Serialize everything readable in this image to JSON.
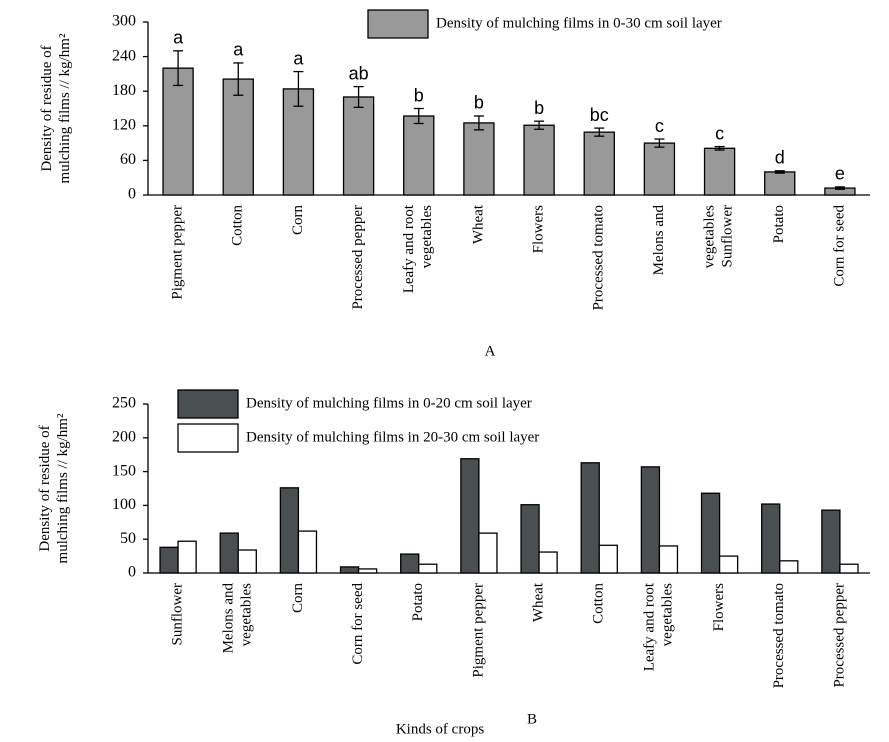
{
  "chart_data": [
    {
      "type": "bar",
      "title": "A",
      "ylabel": "Density of residue of\nmulching films // kg/hm²",
      "categories": [
        "Pigment pepper",
        "Cotton",
        "Corn",
        "Processed pepper",
        "Leafy and root\nvegetables",
        "Wheat",
        "Flowers",
        "Processed tomato",
        "Melons and",
        "vegetables\nSunflower",
        "Potato",
        "Corn for seed"
      ],
      "series": [
        {
          "name": "Density of mulching films in 0-30 cm soil layer",
          "color": "#999999",
          "values": [
            220,
            201,
            184,
            170,
            137,
            125,
            121,
            109,
            90,
            81,
            40,
            12
          ],
          "errors": [
            30,
            28,
            30,
            18,
            13,
            12,
            7,
            7,
            7,
            3,
            2,
            2
          ],
          "annotations": [
            "a",
            "a",
            "a",
            "ab",
            "b",
            "b",
            "b",
            "bc",
            "c",
            "c",
            "d",
            "e"
          ]
        }
      ],
      "ylim": [
        0,
        300
      ],
      "yticks": [
        0,
        60,
        120,
        180,
        240,
        300
      ],
      "grid": false,
      "legend": "top-right"
    },
    {
      "type": "bar",
      "title": "B",
      "xlabel": "Kinds of crops",
      "ylabel": "Density of residue of\nmulching films // kg/hm²",
      "categories": [
        "Sunflower",
        "Melons and\nvegetables",
        "Corn",
        "Corn for seed",
        "Potato",
        "Pigment pepper",
        "Wheat",
        "Cotton",
        "Leafy and root\nvegetables",
        "Flowers",
        "Processed tomato",
        "Processed pepper"
      ],
      "series": [
        {
          "name": "Density of mulching films in 0-20 cm soil layer",
          "color": "#4a4f52",
          "values": [
            38,
            59,
            126,
            9,
            28,
            169,
            101,
            163,
            157,
            118,
            102,
            93
          ]
        },
        {
          "name": "Density of mulching films in 20-30 cm soil layer",
          "color": "#ffffff",
          "values": [
            47,
            34,
            62,
            6,
            13,
            59,
            31,
            41,
            40,
            25,
            18,
            13
          ]
        }
      ],
      "ylim": [
        0,
        250
      ],
      "yticks": [
        0,
        50,
        100,
        150,
        200,
        250
      ],
      "grid": false,
      "legend": "top-left"
    }
  ]
}
